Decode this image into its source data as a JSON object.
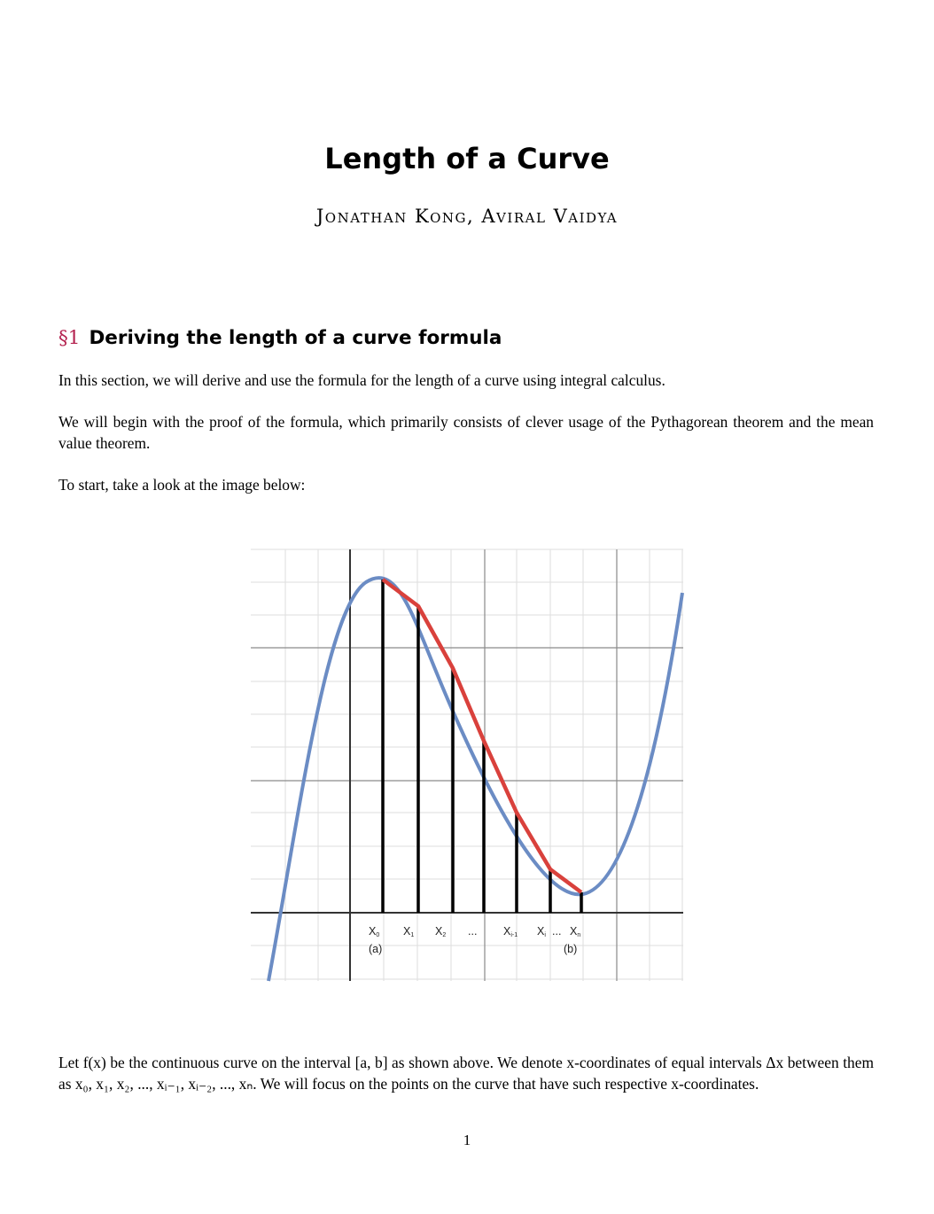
{
  "title": "Length of a Curve",
  "authors": "Jonathan Kong, Aviral Vaidya",
  "section": {
    "number": "§1",
    "heading": "Deriving the length of a curve formula"
  },
  "paragraphs": {
    "p1": "In this section, we will derive and use the formula for the length of a curve using integral calculus.",
    "p2": "We will begin with the proof of the formula, which primarily consists of clever usage of the Pythagorean theorem and the mean value theorem.",
    "p3": "To start, take a look at the image below:",
    "p4": "Let f(x) be the continuous curve on the interval [a, b] as shown above. We denote x-coordinates of equal intervals Δx between them as x₀, x₁, x₂, ..., xᵢ₋₁, xᵢ₋₂, ..., xₙ. We will focus on the points on the curve that have such respective x-coordinates."
  },
  "figure": {
    "labels": {
      "x0": "X",
      "x0_sub": "0",
      "x1": "X",
      "x1_sub": "1",
      "x2": "X",
      "x2_sub": "2",
      "dots1": "...",
      "xim1": "X",
      "xim1_sub": "i-1",
      "xi": "X",
      "xi_sub": "i",
      "dots2": "...",
      "xn": "X",
      "xn_sub": "n",
      "a": "(a)",
      "b": "(b)"
    },
    "colors": {
      "curve": "#6b8cc4",
      "secant": "#d9413c",
      "grid": "#d9d9d9",
      "major": "#888888"
    }
  },
  "page_number": "1"
}
